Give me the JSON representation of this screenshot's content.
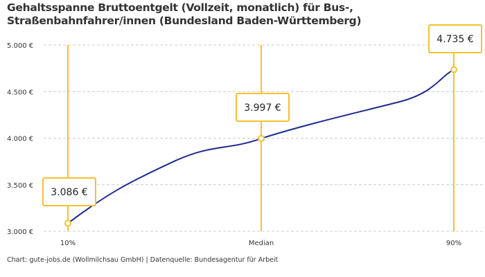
{
  "chart_data": {
    "type": "line",
    "title": "Gehaltsspanne Bruttoentgelt (Vollzeit, monatlich) für Bus-, Straßenbahnfahrer/innen (Bundesland Baden-Württemberg)",
    "categories": [
      "10%",
      "Median",
      "90%"
    ],
    "values": [
      3086,
      3997,
      4735
    ],
    "data_labels": [
      "3.086 €",
      "3.997 €",
      "4.735 €"
    ],
    "ylim": [
      3000,
      5000
    ],
    "yticks": [
      3000,
      3500,
      4000,
      4500,
      5000
    ],
    "ytick_labels": [
      "3.000 €",
      "3.500 €",
      "4.000 €",
      "4.500 €",
      "5.000 €"
    ],
    "grid": true,
    "colors": {
      "line": "#1a2a8c",
      "marker": "#f5c12e",
      "grid": "#cccccc"
    }
  },
  "source": "Chart: gute-jobs.de (Wollmilchsau GmbH) | Datenquelle: Bundesagentur für Arbeit"
}
